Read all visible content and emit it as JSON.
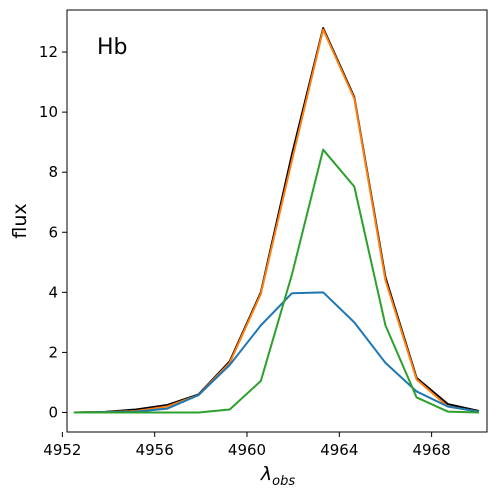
{
  "chart_data": {
    "type": "line",
    "title": "Hb",
    "xlabel": "λ",
    "xlabel_subscript": "obs",
    "ylabel": "flux",
    "xlim": [
      4952.2,
      4970.4
    ],
    "ylim": [
      -0.65,
      13.4
    ],
    "xticks": [
      4952,
      4956,
      4960,
      4964,
      4968
    ],
    "yticks": [
      0,
      2,
      4,
      6,
      8,
      10,
      12
    ],
    "grid": false,
    "x": [
      4952.5,
      4953.85,
      4955.2,
      4956.55,
      4957.9,
      4959.25,
      4960.6,
      4961.95,
      4963.3,
      4964.65,
      4966.0,
      4967.35,
      4968.7,
      4970.05
    ],
    "series": [
      {
        "color": "#000000",
        "values": [
          0.0,
          0.02,
          0.1,
          0.25,
          0.6,
          1.7,
          4.0,
          8.6,
          12.8,
          10.5,
          4.5,
          1.15,
          0.28,
          0.05
        ]
      },
      {
        "color": "#ff7f0e",
        "values": [
          0.0,
          0.01,
          0.05,
          0.2,
          0.58,
          1.65,
          3.95,
          8.4,
          12.75,
          10.45,
          4.4,
          1.1,
          0.2,
          0.03
        ]
      },
      {
        "color": "#1f77b4",
        "values": [
          0.0,
          0.01,
          0.03,
          0.13,
          0.58,
          1.58,
          2.9,
          3.97,
          4.0,
          3.0,
          1.65,
          0.7,
          0.2,
          0.03
        ]
      },
      {
        "color": "#2ca02c",
        "values": [
          0.0,
          0.0,
          0.0,
          0.0,
          0.0,
          0.1,
          1.05,
          4.6,
          8.75,
          7.52,
          2.9,
          0.5,
          0.03,
          0.0
        ]
      }
    ]
  }
}
